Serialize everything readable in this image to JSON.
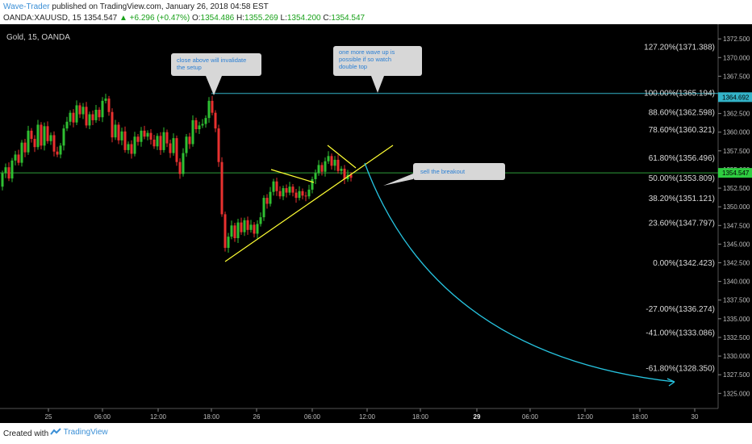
{
  "header": {
    "author": "Wave-Trader",
    "published": "published on TradingView.com, January 26, 2018 04:58 EST",
    "symbol": "OANDA:XAUUSD, 15",
    "last": "1354.547",
    "change": "+6.296 (+0.47%)",
    "o_label": "O:",
    "o_value": "1354.486",
    "h_label": "H:",
    "h_value": "1355.269",
    "l_label": "L:",
    "l_value": "1354.200",
    "c_label": "C:",
    "c_value": "1354.547"
  },
  "chart_title": "Gold, 15, OANDA",
  "footer": {
    "created_with": "Created with",
    "brand": "TradingView"
  },
  "colors": {
    "background": "#000000",
    "candle_up": "#2fbf32",
    "candle_down": "#e8312f",
    "fib_line": "#33b3c8",
    "current_line": "#2e9e3a",
    "trendline": "#ffff33",
    "projection": "#27c4e0",
    "note_bg": "#d7d7d7",
    "note_text": "#2a7fd4"
  },
  "chart_data": {
    "type": "candlestick",
    "price_axis": {
      "ylim": [
        1323.8,
        1373.2
      ],
      "ticks": [
        "1372.500",
        "1370.000",
        "1367.500",
        "1365.000",
        "1362.500",
        "1360.000",
        "1357.500",
        "1355.000",
        "1352.500",
        "1350.000",
        "1347.500",
        "1345.000",
        "1342.500",
        "1340.000",
        "1337.500",
        "1335.000",
        "1332.500",
        "1330.000",
        "1327.500",
        "1325.000"
      ],
      "last_price_label": "1354.547",
      "marked_price_label": "1364.692"
    },
    "time_axis": {
      "ticks": [
        "25",
        "06:00",
        "12:00",
        "18:00",
        "26",
        "06:00",
        "12:00",
        "18:00",
        "29",
        "06:00",
        "12:00",
        "18:00",
        "30"
      ]
    },
    "fib_levels": [
      {
        "label": "127.20%(1371.388)",
        "value": 1371.388,
        "line": false
      },
      {
        "label": "100.00%(1365.194)",
        "value": 1365.194,
        "line": true
      },
      {
        "label": "88.60%(1362.598)",
        "value": 1362.598,
        "line": false
      },
      {
        "label": "78.60%(1360.321)",
        "value": 1360.321,
        "line": false
      },
      {
        "label": "61.80%(1356.496)",
        "value": 1356.496,
        "line": false
      },
      {
        "label": "50.00%(1353.809)",
        "value": 1353.809,
        "line": false
      },
      {
        "label": "38.20%(1351.121)",
        "value": 1351.121,
        "line": false
      },
      {
        "label": "23.60%(1347.797)",
        "value": 1347.797,
        "line": false
      },
      {
        "label": "0.00%(1342.423)",
        "value": 1342.423,
        "line": false
      },
      {
        "label": "-27.00%(1336.274)",
        "value": 1336.274,
        "line": false
      },
      {
        "label": "-41.00%(1333.086)",
        "value": 1333.086,
        "line": false
      },
      {
        "label": "-61.80%(1328.350)",
        "value": 1328.35,
        "line": false
      }
    ],
    "current_price": 1354.547,
    "notes": [
      {
        "lines": [
          "close above will invalidate",
          "the setup"
        ]
      },
      {
        "lines": [
          "one more wave up is",
          "possible if so watch",
          "double top"
        ]
      },
      {
        "lines": [
          "sell the breakout"
        ]
      }
    ]
  }
}
